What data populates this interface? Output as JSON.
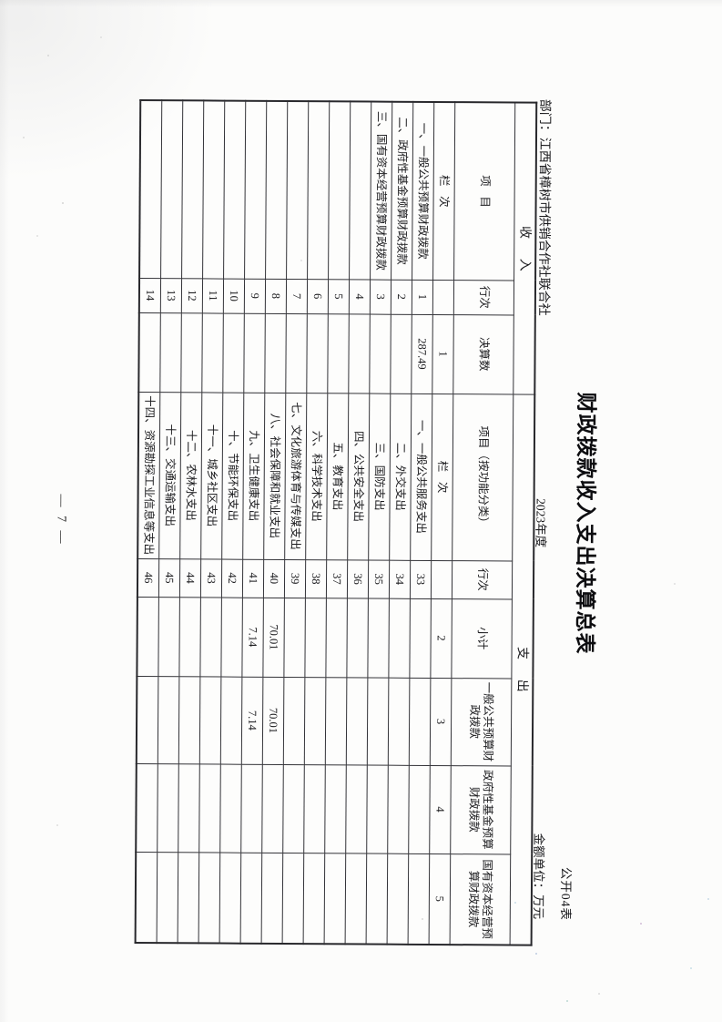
{
  "page": {
    "number_label": "— 7 —"
  },
  "form": {
    "title": "财政拨款收入支出决算总表",
    "form_code": "公开04表",
    "department": "部门：江西省樟树市供销合作社联合社",
    "fiscal_year": "2023年度",
    "unit_note": "金额单位：万元"
  },
  "table": {
    "revenue_section_label": "收入",
    "expenditure_section_label": "支出",
    "columns": [
      "项目",
      "行次",
      "决算数",
      "项目（按功能分类）",
      "行次",
      "小计",
      "一般公共预算财政拨款",
      "政府性基金预算财政拨款",
      "国有资本经营预算财政拨款"
    ],
    "column_index_row": [
      "栏次",
      "",
      "1",
      "栏次",
      "",
      "2",
      "3",
      "4",
      "5"
    ],
    "rows": [
      [
        "一、一般公共预算财政拨款",
        "1",
        "287.49",
        "一、一般公共服务支出",
        "33",
        "",
        "",
        "",
        ""
      ],
      [
        "二、政府性基金预算财政拨款",
        "2",
        "",
        "二、外交支出",
        "34",
        "",
        "",
        "",
        ""
      ],
      [
        "三、国有资本经营预算财政拨款",
        "3",
        "",
        "三、国防支出",
        "35",
        "",
        "",
        "",
        ""
      ],
      [
        "",
        "4",
        "",
        "四、公共安全支出",
        "36",
        "",
        "",
        "",
        ""
      ],
      [
        "",
        "5",
        "",
        "五、教育支出",
        "37",
        "",
        "",
        "",
        ""
      ],
      [
        "",
        "6",
        "",
        "六、科学技术支出",
        "38",
        "",
        "",
        "",
        ""
      ],
      [
        "",
        "7",
        "",
        "七、文化旅游体育与传媒支出",
        "39",
        "",
        "",
        "",
        ""
      ],
      [
        "",
        "8",
        "",
        "八、社会保障和就业支出",
        "40",
        "70.01",
        "70.01",
        "",
        ""
      ],
      [
        "",
        "9",
        "",
        "九、卫生健康支出",
        "41",
        "7.14",
        "7.14",
        "",
        ""
      ],
      [
        "",
        "10",
        "",
        "十、节能环保支出",
        "42",
        "",
        "",
        "",
        ""
      ],
      [
        "",
        "11",
        "",
        "十一、城乡社区支出",
        "43",
        "",
        "",
        "",
        ""
      ],
      [
        "",
        "12",
        "",
        "十二、农林水支出",
        "44",
        "",
        "",
        "",
        ""
      ],
      [
        "",
        "13",
        "",
        "十三、交通运输支出",
        "45",
        "",
        "",
        "",
        ""
      ],
      [
        "",
        "14",
        "",
        "十四、资源勘探工业信息等支出",
        "46",
        "",
        "",
        "",
        ""
      ]
    ]
  }
}
